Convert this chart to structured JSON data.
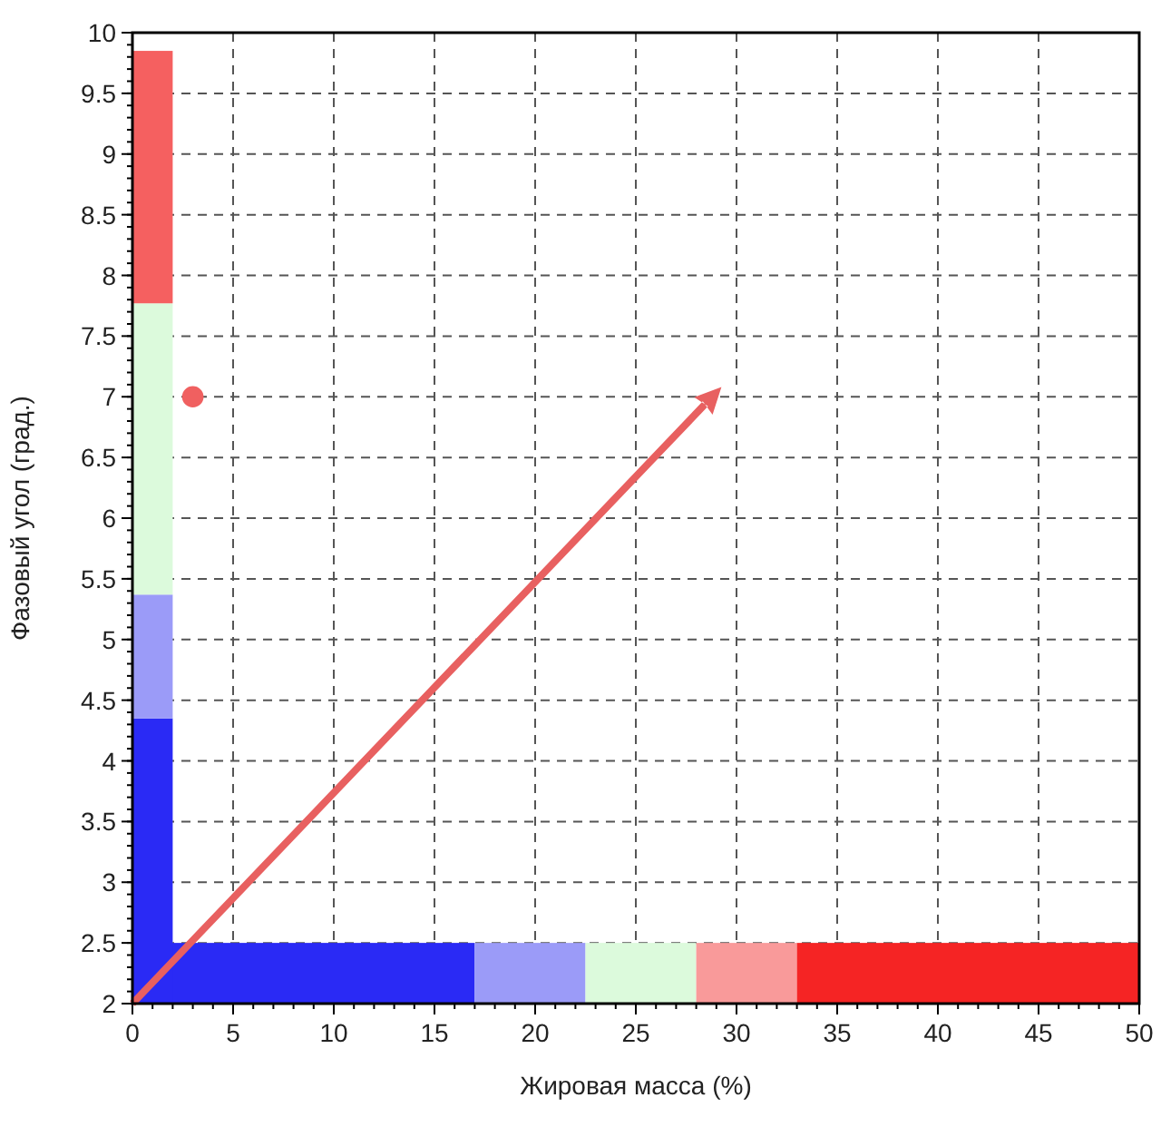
{
  "chart_data": {
    "type": "scatter",
    "xlabel": "Жировая масса (%)",
    "ylabel": "Фазовый угол (град.)",
    "x": [
      3
    ],
    "values": [
      7
    ],
    "color": "#f06060",
    "marker": "circle",
    "xlim": [
      0,
      50
    ],
    "xticks": [
      0,
      5,
      10,
      15,
      20,
      25,
      30,
      35,
      40,
      45,
      50
    ],
    "ylim": [
      2,
      10
    ],
    "yticks": [
      2,
      2.5,
      3,
      3.5,
      4,
      4.5,
      5,
      5.5,
      6,
      6.5,
      7,
      7.5,
      8,
      8.5,
      9,
      9.5,
      10
    ],
    "grid": true,
    "line_style": "dashed",
    "bands": [
      {
        "axis": "x",
        "from": 0,
        "to": 17,
        "color": "#2a2af5"
      },
      {
        "axis": "x",
        "from": 17,
        "to": 22.5,
        "color": "#9b9bf8"
      },
      {
        "axis": "x",
        "from": 22.5,
        "to": 28,
        "color": "#dcfadc"
      },
      {
        "axis": "x",
        "from": 28,
        "to": 33,
        "color": "#f99a9a"
      },
      {
        "axis": "x",
        "from": 33,
        "to": 50,
        "color": "#f52424"
      },
      {
        "axis": "y",
        "from": 2,
        "to": 4.35,
        "color": "#2a2af5"
      },
      {
        "axis": "y",
        "from": 4.35,
        "to": 5.37,
        "color": "#9b9bf8"
      },
      {
        "axis": "y",
        "from": 5.37,
        "to": 7.77,
        "color": "#dcfadc"
      },
      {
        "axis": "y",
        "from": 7.77,
        "to": 9.85,
        "color": "#f56060"
      }
    ]
  }
}
